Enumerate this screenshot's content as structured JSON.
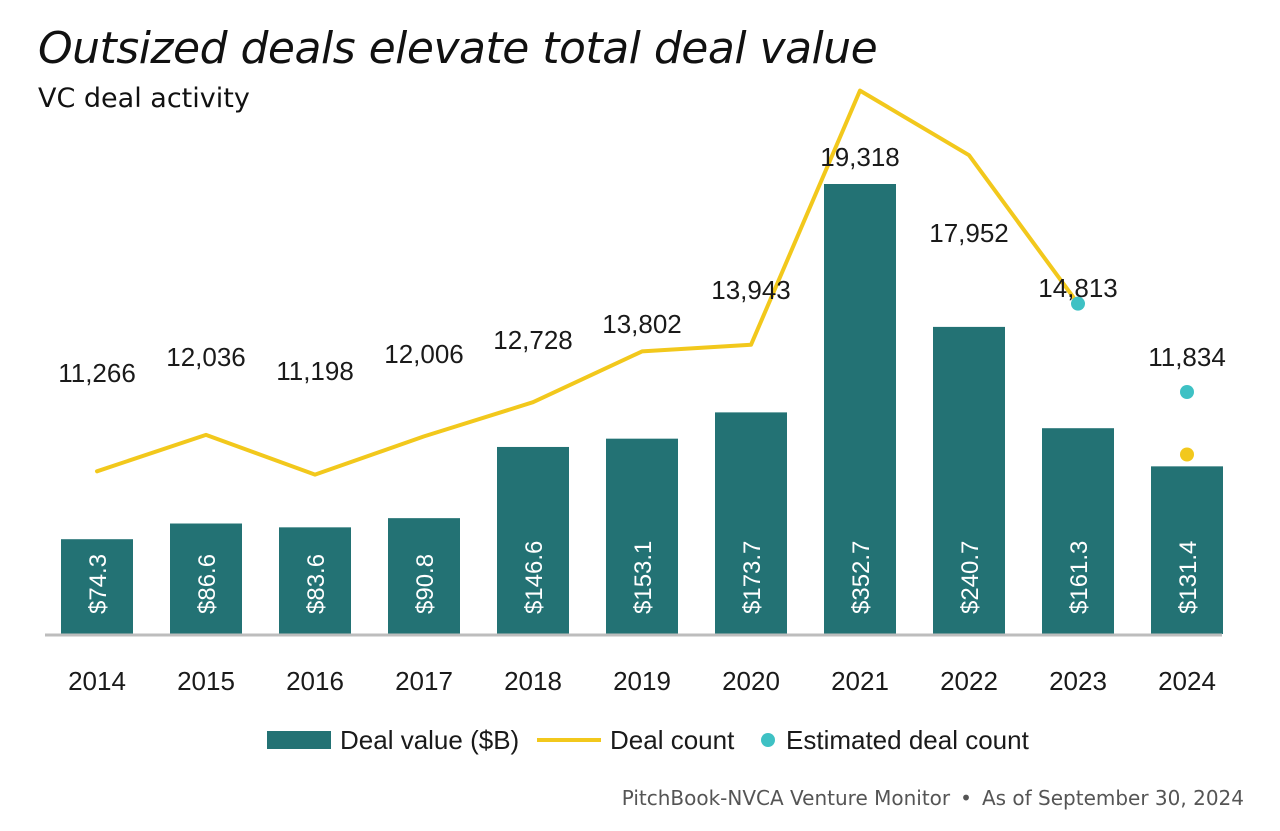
{
  "title": "Outsized deals elevate total deal value",
  "subtitle": "VC deal activity",
  "footer": {
    "source": "PitchBook-NVCA Venture Monitor",
    "separator": "•",
    "date": "As of September 30, 2024"
  },
  "colors": {
    "bar": "#237274",
    "line": "#F2C81C",
    "estimate": "#3EC1C4",
    "axis": "#BDBDBD",
    "bar_label": "#FFFFFF",
    "text": "#1A1A1A"
  },
  "chart_data": {
    "type": "bar+line",
    "categories": [
      "2014",
      "2015",
      "2016",
      "2017",
      "2018",
      "2019",
      "2020",
      "2021",
      "2022",
      "2023",
      "2024"
    ],
    "series": [
      {
        "name": "Deal value ($B)",
        "type": "bar",
        "values": [
          74.3,
          86.6,
          83.6,
          90.8,
          146.6,
          153.1,
          173.7,
          352.7,
          240.7,
          161.3,
          131.4
        ],
        "labels": [
          "$74.3",
          "$86.6",
          "$83.6",
          "$90.8",
          "$146.6",
          "$153.1",
          "$173.7",
          "$352.7",
          "$240.7",
          "$161.3",
          "$131.4"
        ]
      },
      {
        "name": "Deal count",
        "type": "line",
        "values": [
          11266,
          12036,
          11198,
          12006,
          12728,
          13802,
          13943,
          19318,
          17952,
          14813,
          null
        ],
        "labels": [
          "11,266",
          "12,036",
          "11,198",
          "12,006",
          "12,728",
          "13,802",
          "13,943",
          "19,318",
          "17,952",
          "14,813",
          "11,834"
        ]
      },
      {
        "name": "Estimated deal count",
        "type": "scatter",
        "points": [
          {
            "category": "2023",
            "value": 14813
          },
          {
            "category": "2024",
            "value": 11834
          }
        ]
      }
    ],
    "extra_markers": [
      {
        "category": "2024",
        "value": 11834,
        "series": "Deal count"
      }
    ],
    "legend": [
      "Deal value ($B)",
      "Deal count",
      "Estimated deal count"
    ],
    "legend_position": "bottom",
    "title": "Outsized deals elevate total deal value",
    "subtitle": "VC deal activity",
    "xlabel": "",
    "ylabel": "",
    "bar_ylim": [
      0,
      400
    ],
    "line_ylim": [
      0,
      22000
    ],
    "grid": false
  }
}
